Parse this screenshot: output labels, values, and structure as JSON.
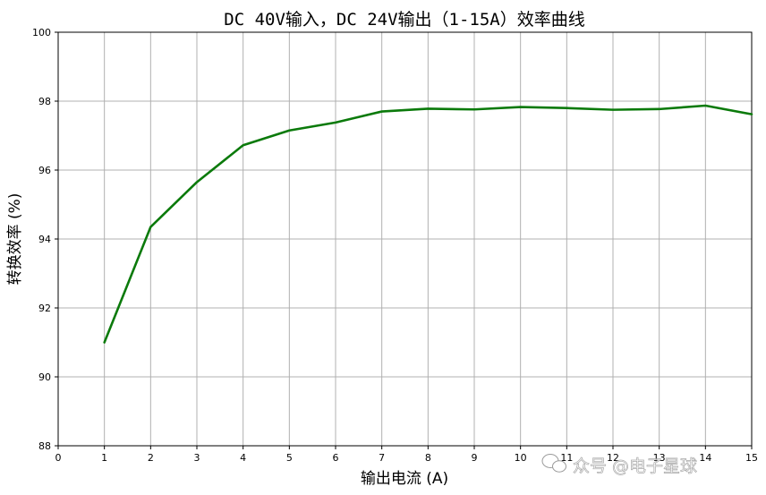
{
  "chart_data": {
    "type": "line",
    "title": "DC 40V输入，DC 24V输出（1-15A）效率曲线",
    "xlabel": "输出电流 (A)",
    "ylabel": "转换效率 (%)",
    "xlim": [
      0,
      15
    ],
    "ylim": [
      88,
      100
    ],
    "xticks": [
      0,
      1,
      2,
      3,
      4,
      5,
      6,
      7,
      8,
      9,
      10,
      11,
      12,
      13,
      14,
      15
    ],
    "yticks": [
      88,
      90,
      92,
      94,
      96,
      98,
      100
    ],
    "grid": true,
    "series": [
      {
        "color": "#0b7a0b",
        "x": [
          1,
          2,
          3,
          4,
          5,
          6,
          7,
          8,
          9,
          10,
          11,
          12,
          13,
          14,
          15
        ],
        "y": [
          91.0,
          94.35,
          95.65,
          96.72,
          97.15,
          97.38,
          97.7,
          97.78,
          97.76,
          97.83,
          97.8,
          97.75,
          97.77,
          97.87,
          97.62
        ]
      }
    ]
  },
  "watermark": "众号 @电子星球"
}
